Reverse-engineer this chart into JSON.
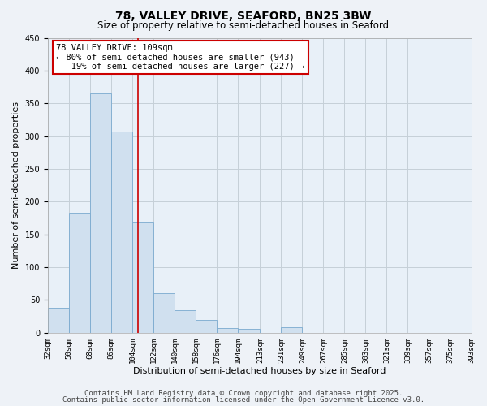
{
  "title": "78, VALLEY DRIVE, SEAFORD, BN25 3BW",
  "subtitle": "Size of property relative to semi-detached houses in Seaford",
  "xlabel": "Distribution of semi-detached houses by size in Seaford",
  "ylabel": "Number of semi-detached properties",
  "bin_edges": [
    32,
    50,
    68,
    86,
    104,
    122,
    140,
    158,
    176,
    194,
    213,
    231,
    249,
    267,
    285,
    303,
    321,
    339,
    357,
    375,
    393
  ],
  "bin_heights": [
    38,
    183,
    365,
    307,
    168,
    61,
    34,
    19,
    7,
    6,
    0,
    8,
    0,
    0,
    0,
    0,
    0,
    0,
    0,
    0
  ],
  "bar_color": "#d0e0ef",
  "bar_edge_color": "#7aaacf",
  "vline_x": 109,
  "vline_color": "#cc0000",
  "annotation_line1": "78 VALLEY DRIVE: 109sqm",
  "annotation_line2": "← 80% of semi-detached houses are smaller (943)",
  "annotation_line3": "   19% of semi-detached houses are larger (227) →",
  "annotation_box_color": "#ffffff",
  "annotation_box_edge": "#cc0000",
  "ylim": [
    0,
    450
  ],
  "tick_labels": [
    "32sqm",
    "50sqm",
    "68sqm",
    "86sqm",
    "104sqm",
    "122sqm",
    "140sqm",
    "158sqm",
    "176sqm",
    "194sqm",
    "213sqm",
    "231sqm",
    "249sqm",
    "267sqm",
    "285sqm",
    "303sqm",
    "321sqm",
    "339sqm",
    "357sqm",
    "375sqm",
    "393sqm"
  ],
  "footer1": "Contains HM Land Registry data © Crown copyright and database right 2025.",
  "footer2": "Contains public sector information licensed under the Open Government Licence v3.0.",
  "bg_color": "#eef2f7",
  "plot_bg_color": "#e8f0f8",
  "grid_color": "#c5cfd8",
  "title_fontsize": 10,
  "subtitle_fontsize": 8.5,
  "axis_label_fontsize": 8,
  "tick_fontsize": 6.5,
  "footer_fontsize": 6.5,
  "annotation_fontsize": 7.5
}
